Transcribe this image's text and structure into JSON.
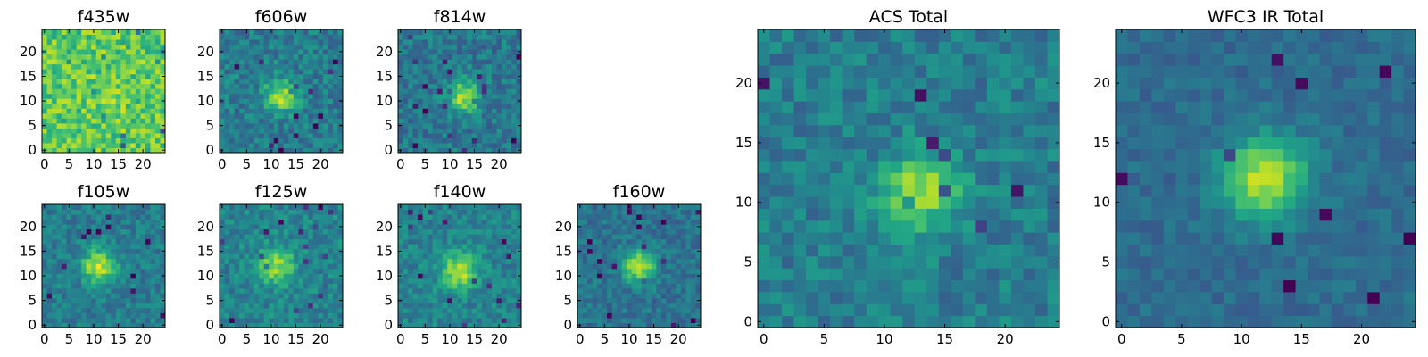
{
  "chart_data": {
    "type": "heatmap",
    "colormap": "viridis",
    "grid": false,
    "panels": [
      {
        "title": "f435w",
        "x_ticks": [
          0,
          5,
          10,
          15,
          20
        ],
        "y_ticks": [
          0,
          5,
          10,
          15,
          20
        ],
        "xlim": [
          -0.5,
          24.5
        ],
        "ylim": [
          -0.5,
          24.5
        ],
        "grid_size": 25,
        "peak": [
          13,
          12
        ],
        "spread": 12,
        "amp": 0.05,
        "base": 0.74,
        "noise": 0.34,
        "seed": 435
      },
      {
        "title": "f606w",
        "x_ticks": [
          0,
          5,
          10,
          15,
          20
        ],
        "y_ticks": [
          0,
          5,
          10,
          15,
          20
        ],
        "xlim": [
          -0.5,
          24.5
        ],
        "ylim": [
          -0.5,
          24.5
        ],
        "grid_size": 25,
        "peak": [
          12,
          11
        ],
        "spread": 4.5,
        "amp": 0.48,
        "base": 0.42,
        "noise": 0.26,
        "seed": 606
      },
      {
        "title": "f814w",
        "x_ticks": [
          0,
          5,
          10,
          15,
          20
        ],
        "y_ticks": [
          0,
          5,
          10,
          15,
          20
        ],
        "xlim": [
          -0.5,
          24.5
        ],
        "ylim": [
          -0.5,
          24.5
        ],
        "grid_size": 25,
        "peak": [
          13,
          11
        ],
        "spread": 4.5,
        "amp": 0.5,
        "base": 0.4,
        "noise": 0.26,
        "seed": 814
      },
      {
        "title": "f105w",
        "x_ticks": [
          0,
          5,
          10,
          15,
          20
        ],
        "y_ticks": [
          0,
          5,
          10,
          15,
          20
        ],
        "xlim": [
          -0.5,
          24.5
        ],
        "ylim": [
          -0.5,
          24.5
        ],
        "grid_size": 25,
        "peak": [
          11,
          12
        ],
        "spread": 5,
        "amp": 0.5,
        "base": 0.42,
        "noise": 0.22,
        "seed": 105
      },
      {
        "title": "f125w",
        "x_ticks": [
          0,
          5,
          10,
          15,
          20
        ],
        "y_ticks": [
          0,
          5,
          10,
          15,
          20
        ],
        "xlim": [
          -0.5,
          24.5
        ],
        "ylim": [
          -0.5,
          24.5
        ],
        "grid_size": 25,
        "peak": [
          11,
          12
        ],
        "spread": 5.5,
        "amp": 0.42,
        "base": 0.45,
        "noise": 0.24,
        "seed": 125
      },
      {
        "title": "f140w",
        "x_ticks": [
          0,
          5,
          10,
          15,
          20
        ],
        "y_ticks": [
          0,
          5,
          10,
          15,
          20
        ],
        "xlim": [
          -0.5,
          24.5
        ],
        "ylim": [
          -0.5,
          24.5
        ],
        "grid_size": 25,
        "peak": [
          12,
          11
        ],
        "spread": 5.5,
        "amp": 0.45,
        "base": 0.45,
        "noise": 0.22,
        "seed": 140
      },
      {
        "title": "f160w",
        "x_ticks": [
          0,
          5,
          10,
          15,
          20
        ],
        "y_ticks": [
          0,
          5,
          10,
          15,
          20
        ],
        "xlim": [
          -0.5,
          24.5
        ],
        "ylim": [
          -0.5,
          24.5
        ],
        "grid_size": 25,
        "peak": [
          12,
          12
        ],
        "spread": 5,
        "amp": 0.5,
        "base": 0.38,
        "noise": 0.2,
        "seed": 160
      },
      {
        "title": "ACS Total",
        "x_ticks": [
          0,
          5,
          10,
          15,
          20
        ],
        "y_ticks": [
          0,
          5,
          10,
          15,
          20
        ],
        "xlim": [
          -0.5,
          24.5
        ],
        "ylim": [
          -0.5,
          24.5
        ],
        "grid_size": 25,
        "peak": [
          13,
          11
        ],
        "spread": 4.5,
        "amp": 0.45,
        "base": 0.42,
        "noise": 0.24,
        "seed": 999
      },
      {
        "title": "WFC3 IR Total",
        "x_ticks": [
          0,
          5,
          10,
          15,
          20
        ],
        "y_ticks": [
          0,
          5,
          10,
          15,
          20
        ],
        "xlim": [
          -0.5,
          24.5
        ],
        "ylim": [
          -0.5,
          24.5
        ],
        "grid_size": 25,
        "peak": [
          12,
          12
        ],
        "spread": 5.5,
        "amp": 0.55,
        "base": 0.35,
        "noise": 0.14,
        "seed": 777
      }
    ]
  }
}
